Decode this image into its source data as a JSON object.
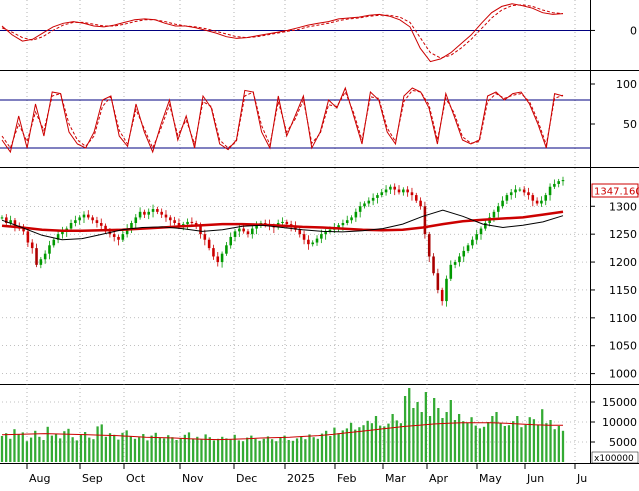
{
  "chart_data": [
    {
      "panel": "macd",
      "type": "line",
      "yticks": [
        "0"
      ],
      "ylim": [
        -40,
        32
      ],
      "reference_lines": [
        0
      ],
      "series": [
        {
          "color": "#cc0000",
          "style": "solid",
          "values": [
            5,
            -5,
            -12,
            -10,
            -3,
            4,
            8,
            10,
            8,
            5,
            4,
            6,
            9,
            12,
            13,
            12,
            8,
            5,
            5,
            3,
            0,
            -3,
            -7,
            -9,
            -8,
            -6,
            -4,
            -2,
            0,
            3,
            6,
            8,
            10,
            13,
            14,
            15,
            17,
            18,
            16,
            12,
            4,
            -20,
            -35,
            -32,
            -25,
            -15,
            -5,
            8,
            20,
            27,
            30,
            28,
            25,
            20,
            18,
            19
          ]
        },
        {
          "color": "#cc0000",
          "style": "dashed",
          "values": [
            3,
            -2,
            -8,
            -11,
            -7,
            0,
            6,
            9,
            9,
            7,
            5,
            5,
            7,
            10,
            12,
            12,
            10,
            7,
            5,
            4,
            2,
            -1,
            -4,
            -7,
            -8,
            -7,
            -5,
            -3,
            -1,
            1,
            4,
            6,
            8,
            11,
            13,
            14,
            16,
            17,
            17,
            15,
            9,
            -8,
            -25,
            -31,
            -28,
            -20,
            -10,
            2,
            14,
            23,
            28,
            29,
            27,
            23,
            20,
            19
          ]
        }
      ]
    },
    {
      "panel": "stochastic",
      "type": "line",
      "yticks": [
        "100",
        "50"
      ],
      "ylim": [
        0,
        115
      ],
      "reference_lines": [
        80,
        20
      ],
      "series": [
        {
          "color": "#cc0000",
          "style": "solid",
          "values": [
            30,
            15,
            60,
            20,
            75,
            35,
            90,
            88,
            40,
            25,
            20,
            40,
            80,
            85,
            35,
            22,
            75,
            40,
            15,
            50,
            80,
            30,
            60,
            20,
            85,
            70,
            25,
            18,
            30,
            92,
            90,
            40,
            20,
            85,
            35,
            60,
            85,
            20,
            40,
            80,
            70,
            95,
            60,
            25,
            90,
            80,
            40,
            25,
            85,
            95,
            90,
            70,
            25,
            88,
            60,
            30,
            25,
            30,
            85,
            90,
            80,
            88,
            90,
            75,
            50,
            20,
            88,
            85
          ]
        },
        {
          "color": "#cc0000",
          "style": "dashed",
          "values": [
            35,
            20,
            50,
            28,
            65,
            42,
            85,
            88,
            50,
            30,
            22,
            35,
            72,
            84,
            42,
            25,
            68,
            44,
            20,
            45,
            74,
            36,
            55,
            25,
            78,
            72,
            30,
            20,
            28,
            85,
            90,
            48,
            24,
            78,
            40,
            56,
            80,
            26,
            38,
            74,
            72,
            90,
            64,
            30,
            84,
            82,
            45,
            28,
            78,
            92,
            90,
            74,
            30,
            82,
            64,
            34,
            26,
            28,
            78,
            88,
            82,
            86,
            88,
            78,
            54,
            24,
            82,
            86
          ]
        }
      ]
    },
    {
      "panel": "price",
      "type": "candlestick",
      "yticks": [
        "1300",
        "1250",
        "1200",
        "1150",
        "1100",
        "1050",
        "1000"
      ],
      "ylim": [
        985,
        1365
      ],
      "last_price_label": "1347.160",
      "close": [
        1280,
        1270,
        1275,
        1265,
        1260,
        1255,
        1235,
        1225,
        1195,
        1205,
        1215,
        1230,
        1240,
        1250,
        1255,
        1260,
        1270,
        1275,
        1280,
        1285,
        1280,
        1275,
        1270,
        1265,
        1255,
        1250,
        1245,
        1240,
        1250,
        1260,
        1270,
        1280,
        1290,
        1285,
        1290,
        1295,
        1290,
        1285,
        1280,
        1275,
        1270,
        1265,
        1268,
        1272,
        1270,
        1265,
        1250,
        1240,
        1225,
        1210,
        1200,
        1215,
        1230,
        1245,
        1255,
        1260,
        1255,
        1250,
        1260,
        1265,
        1270,
        1268,
        1265,
        1262,
        1270,
        1272,
        1268,
        1265,
        1258,
        1250,
        1240,
        1232,
        1235,
        1242,
        1250,
        1255,
        1258,
        1262,
        1266,
        1270,
        1275,
        1280,
        1290,
        1300,
        1305,
        1310,
        1315,
        1320,
        1325,
        1330,
        1335,
        1330,
        1325,
        1330,
        1325,
        1320,
        1310,
        1300,
        1250,
        1210,
        1180,
        1150,
        1130,
        1170,
        1195,
        1200,
        1210,
        1220,
        1230,
        1240,
        1250,
        1260,
        1270,
        1280,
        1290,
        1300,
        1310,
        1320,
        1325,
        1330,
        1330,
        1325,
        1320,
        1310,
        1305,
        1310,
        1320,
        1335,
        1340,
        1345,
        1347
      ],
      "overlays": [
        {
          "color": "#cc0000",
          "style": "thick",
          "values": [
            1265,
            1262,
            1258,
            1256,
            1256,
            1257,
            1258,
            1260,
            1262,
            1264,
            1266,
            1268,
            1268,
            1267,
            1265,
            1263,
            1262,
            1260,
            1258,
            1257,
            1258,
            1262,
            1268,
            1273,
            1276,
            1278,
            1280,
            1285,
            1290
          ]
        },
        {
          "color": "#000000",
          "style": "thin",
          "values": [
            1275,
            1262,
            1248,
            1240,
            1242,
            1250,
            1258,
            1262,
            1263,
            1260,
            1255,
            1258,
            1264,
            1266,
            1262,
            1258,
            1255,
            1254,
            1256,
            1260,
            1268,
            1282,
            1293,
            1282,
            1268,
            1262,
            1266,
            1272,
            1283
          ]
        }
      ]
    },
    {
      "panel": "volume",
      "type": "bar",
      "yticks": [
        "15000",
        "10000",
        "5000"
      ],
      "ylim": [
        0,
        19000
      ],
      "unit_label": "x100000",
      "values": [
        6500,
        7200,
        5800,
        8200,
        6900,
        7400,
        5200,
        6100,
        7800,
        6300,
        5500,
        8800,
        6600,
        7100,
        5900,
        7700,
        8300,
        6200,
        5400,
        6800,
        7500,
        6100,
        5700,
        8900,
        9400,
        6300,
        7200,
        6800,
        5600,
        7300,
        7900,
        6500,
        5800,
        6200,
        7000,
        5400,
        6600,
        7300,
        6100,
        5900,
        6700,
        6200,
        5500,
        6000,
        6800,
        7400,
        5800,
        6300,
        5600,
        6900,
        6200,
        5400,
        5800,
        6300,
        5900,
        5600,
        6800,
        5400,
        5200,
        6100,
        6600,
        5800,
        5300,
        5800,
        6400,
        5700,
        5200,
        6000,
        6600,
        5500,
        5300,
        5900,
        6400,
        5700,
        6900,
        6200,
        5800,
        7100,
        7800,
        6500,
        8600,
        7200,
        7900,
        8400,
        9800,
        8100,
        8700,
        9200,
        10300,
        9700,
        11500,
        9100,
        8900,
        9600,
        12000,
        10400,
        9700,
        16500,
        18500,
        13500,
        15000,
        12500,
        17500,
        11500,
        16000,
        13500,
        11000,
        12500,
        15500,
        10500,
        12000,
        10200,
        9800,
        11200,
        9100,
        8400,
        8800,
        10000,
        11500,
        12500,
        9700,
        9000,
        9200,
        10200,
        11500,
        8700,
        9300,
        11200,
        10700,
        9300,
        13200,
        9700,
        10500,
        8200,
        9000,
        7800
      ],
      "overlay": {
        "color": "#cc0000",
        "values": [
          6800,
          6900,
          7000,
          7100,
          7000,
          6900,
          6800,
          6700,
          6600,
          6400,
          6200,
          6100,
          6000,
          5800,
          5700,
          5600,
          5700,
          5800,
          6000,
          6100,
          6200,
          6400,
          6600,
          6900,
          7300,
          7700,
          8100,
          8500,
          8900,
          9200,
          9500,
          9700,
          9800,
          9800,
          9800,
          9700,
          9500,
          9300,
          9200,
          9200
        ]
      }
    }
  ],
  "xaxis": {
    "months": [
      "Aug",
      "Sep",
      "Oct",
      "Nov",
      "Dec",
      "2025",
      "Feb",
      "Mar",
      "Apr",
      "May",
      "Jun",
      "Ju"
    ]
  },
  "colors": {
    "up_candle": "#009900",
    "down_candle": "#cc0000",
    "crash_candle": "#aa0000",
    "reference_line": "#000080",
    "grid_dotted": "#808080",
    "volume_bar": "#33aa33",
    "price_tag": "#cc0000"
  }
}
